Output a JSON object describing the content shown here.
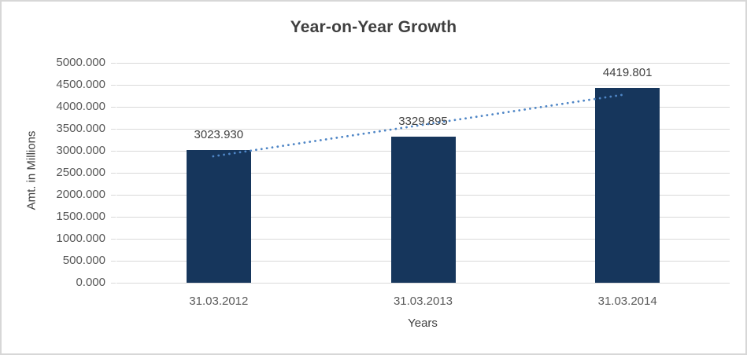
{
  "chart_data": {
    "type": "bar",
    "title": "Year-on-Year Growth",
    "xlabel": "Years",
    "ylabel": "Amt. in Millions",
    "categories": [
      "31.03.2012",
      "31.03.2013",
      "31.03.2014"
    ],
    "values": [
      3023.93,
      3329.895,
      4419.801
    ],
    "data_labels": [
      "3023.930",
      "3329.895",
      "4419.801"
    ],
    "ylim": [
      0,
      5000
    ],
    "y_tick_step": 500,
    "y_tick_labels": [
      "0.000",
      "500.000",
      "1000.000",
      "1500.000",
      "2000.000",
      "2500.000",
      "3000.000",
      "3500.000",
      "4000.000",
      "4500.000",
      "5000.000"
    ],
    "grid": true,
    "legend": "none",
    "trendline": {
      "type": "linear",
      "style": "dotted"
    },
    "colors": {
      "bar": "#16365c",
      "trendline": "#4f86c6",
      "gridline": "#d9d9d9",
      "tick_text": "#595959",
      "label_text": "#404040",
      "title_text": "#3f3f3f"
    }
  }
}
